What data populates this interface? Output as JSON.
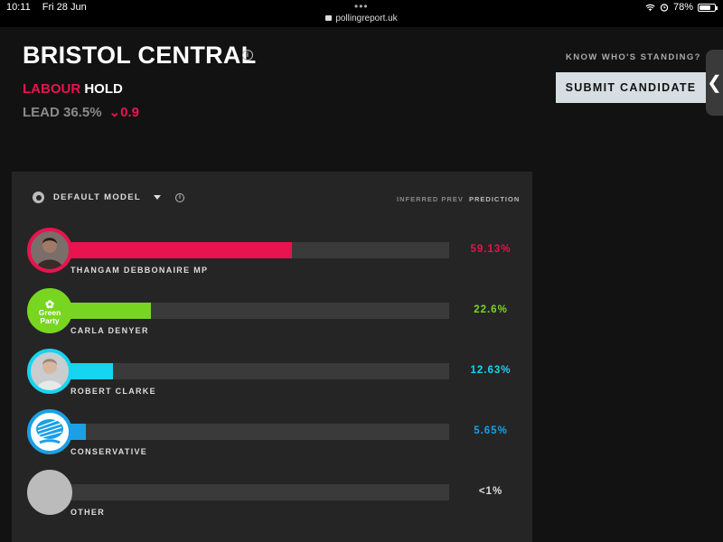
{
  "status": {
    "time": "10:11",
    "date": "Fri 28 Jun",
    "url": "pollingreport.uk",
    "battery": "78%",
    "wifi_icon": "wifi-icon",
    "alarm_icon": "alarm-icon"
  },
  "header": {
    "title": "BRISTOL CENTRAL",
    "result_party": "LABOUR",
    "result_status": "HOLD",
    "lead_label": "LEAD 36.5%",
    "lead_change": "⌄0.9"
  },
  "sidebar": {
    "know_label": "KNOW WHO'S STANDING?",
    "submit_label": "SUBMIT CANDIDATE",
    "tab_glyph": "❮"
  },
  "panel": {
    "model_label": "DEFAULT MODEL",
    "col_inferred": "INFERRED PREV",
    "col_prediction": "PREDICTION"
  },
  "candidates": [
    {
      "name": "THANGAM DEBBONAIRE MP",
      "pct": "59.13%",
      "share": 0.5913,
      "color": "#e8134f",
      "avatar": "portrait"
    },
    {
      "name": "CARLA DENYER",
      "pct": "22.6%",
      "share": 0.226,
      "color": "#78d620",
      "avatar": "green-party",
      "logo_text": "Green Party"
    },
    {
      "name": "ROBERT CLARKE",
      "pct": "12.63%",
      "share": 0.1263,
      "color": "#15d5f0",
      "avatar": "portrait"
    },
    {
      "name": "CONSERVATIVE",
      "pct": "5.65%",
      "share": 0.0565,
      "color": "#1aa0e6",
      "avatar": "conservative"
    },
    {
      "name": "OTHER",
      "pct": "<1%",
      "share": 0.005,
      "color": "#bbbbbb",
      "avatar": "none"
    }
  ]
}
